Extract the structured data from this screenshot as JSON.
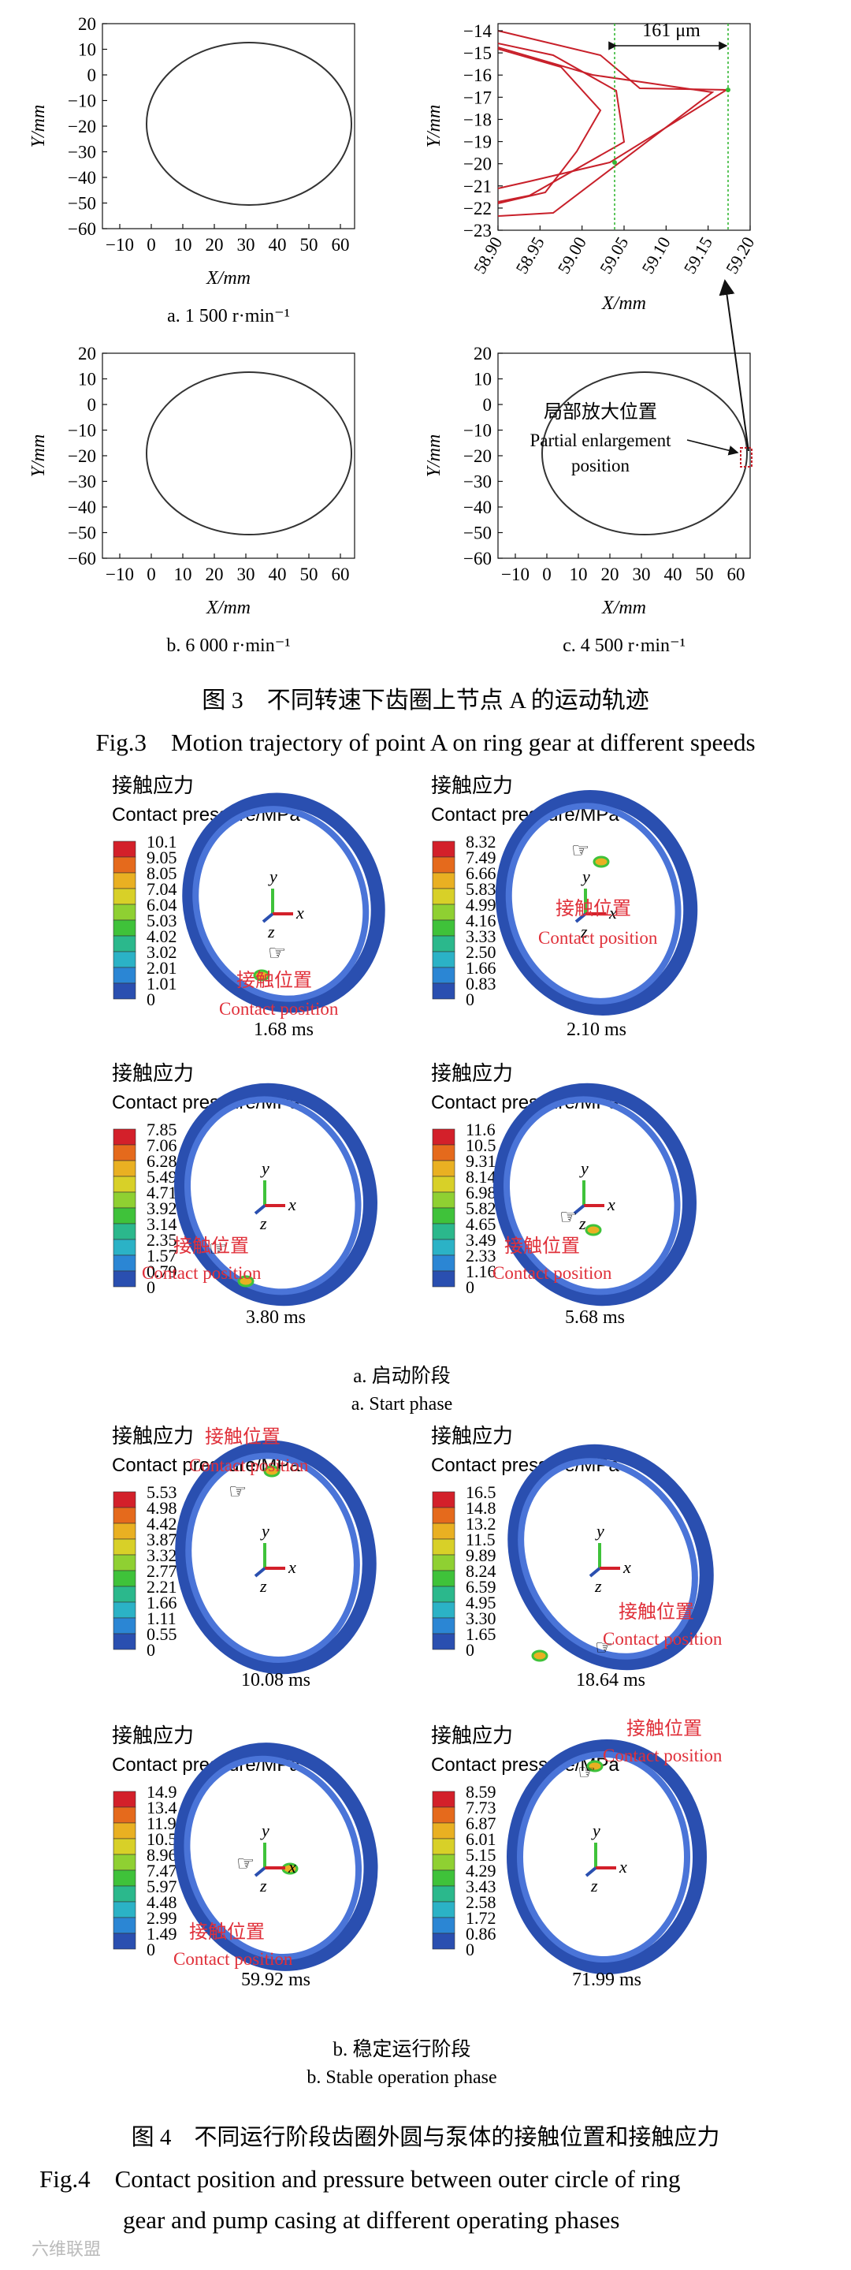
{
  "fig3": {
    "panels": [
      {
        "id": "a",
        "caption": "a. 1 500 r·min⁻¹",
        "ylabel": "Y/mm",
        "xlabel": "X/mm",
        "yticks": [
          "20",
          "10",
          "0",
          "−10",
          "−20",
          "−30",
          "−40",
          "−50",
          "−60"
        ],
        "xticks": [
          "−10",
          "0",
          "10",
          "20",
          "30",
          "40",
          "50",
          "60"
        ]
      },
      {
        "id": "b",
        "caption": "b. 6 000 r·min⁻¹",
        "ylabel": "Y/mm",
        "xlabel": "X/mm",
        "yticks": [
          "20",
          "10",
          "0",
          "−10",
          "−20",
          "−30",
          "−40",
          "−50",
          "−60"
        ],
        "xticks": [
          "−10",
          "0",
          "10",
          "20",
          "30",
          "40",
          "50",
          "60"
        ]
      },
      {
        "id": "c",
        "caption": "c. 4 500 r·min⁻¹",
        "ylabel": "Y/mm",
        "xlabel": "X/mm",
        "yticks": [
          "20",
          "10",
          "0",
          "−10",
          "−20",
          "−30",
          "−40",
          "−50",
          "−60"
        ],
        "xticks": [
          "−10",
          "0",
          "10",
          "20",
          "30",
          "40",
          "50",
          "60"
        ],
        "annotation_cn": "局部放大位置",
        "annotation_en1": "Partial enlargement",
        "annotation_en2": "position"
      },
      {
        "id": "zoom",
        "ylabel": "Y/mm",
        "xlabel": "X/mm",
        "yticks": [
          "−14",
          "−15",
          "−16",
          "−17",
          "−18",
          "−19",
          "−20",
          "−21",
          "−22",
          "−23"
        ],
        "xticks": [
          "58.90",
          "58.95",
          "59.00",
          "59.05",
          "59.10",
          "59.15",
          "59.20"
        ],
        "dimension": "161 μm"
      }
    ],
    "caption_cn": "图 3　不同转速下齿圈上节点 A 的运动轨迹",
    "caption_en": "Fig.3　Motion trajectory of point A on ring gear at different speeds"
  },
  "fig4": {
    "legend_title_cn": "接触应力",
    "legend_title_en": "Contact pressure/MPa",
    "contact_cn": "接触位置",
    "contact_en": "Contact position",
    "axis_x": "x",
    "axis_y": "y",
    "axis_z": "z",
    "panels": [
      {
        "time": "1.68 ms",
        "ticks": [
          "10.1",
          "9.05",
          "8.05",
          "7.04",
          "6.04",
          "5.03",
          "4.02",
          "3.02",
          "2.01",
          "1.01",
          "0"
        ]
      },
      {
        "time": "2.10 ms",
        "ticks": [
          "8.32",
          "7.49",
          "6.66",
          "5.83",
          "4.99",
          "4.16",
          "3.33",
          "2.50",
          "1.66",
          "0.83",
          "0"
        ]
      },
      {
        "time": "3.80 ms",
        "ticks": [
          "7.85",
          "7.06",
          "6.28",
          "5.49",
          "4.71",
          "3.92",
          "3.14",
          "2.35",
          "1.57",
          "0.79",
          "0"
        ]
      },
      {
        "time": "5.68 ms",
        "ticks": [
          "11.6",
          "10.5",
          "9.31",
          "8.14",
          "6.98",
          "5.82",
          "4.65",
          "3.49",
          "2.33",
          "1.16",
          "0"
        ]
      },
      {
        "time": "10.08 ms",
        "ticks": [
          "5.53",
          "4.98",
          "4.42",
          "3.87",
          "3.32",
          "2.77",
          "2.21",
          "1.66",
          "1.11",
          "0.55",
          "0"
        ]
      },
      {
        "time": "18.64 ms",
        "ticks": [
          "16.5",
          "14.8",
          "13.2",
          "11.5",
          "9.89",
          "8.24",
          "6.59",
          "4.95",
          "3.30",
          "1.65",
          "0"
        ]
      },
      {
        "time": "59.92 ms",
        "ticks": [
          "14.9",
          "13.4",
          "11.9",
          "10.5",
          "8.96",
          "7.47",
          "5.97",
          "4.48",
          "2.99",
          "1.49",
          "0"
        ]
      },
      {
        "time": "71.99 ms",
        "ticks": [
          "8.59",
          "7.73",
          "6.87",
          "6.01",
          "5.15",
          "4.29",
          "3.43",
          "2.58",
          "1.72",
          "0.86",
          "0"
        ]
      }
    ],
    "sub_a_cn": "a. 启动阶段",
    "sub_a_en": "a. Start phase",
    "sub_b_cn": "b. 稳定运行阶段",
    "sub_b_en": "b. Stable operation phase",
    "caption_cn": "图 4　不同运行阶段齿圈外圆与泵体的接触位置和接触应力",
    "caption_en1": "Fig.4　Contact position and pressure between outer circle of ring",
    "caption_en2": "gear and pump casing at different operating phases"
  },
  "watermark": "六维联盟",
  "colors": {
    "trajectory": "#c8202a",
    "ring": "#2a4fb0",
    "ring_light": "#4a74d8",
    "contact_text": "#e0303a",
    "green_guide": "#35b835"
  }
}
